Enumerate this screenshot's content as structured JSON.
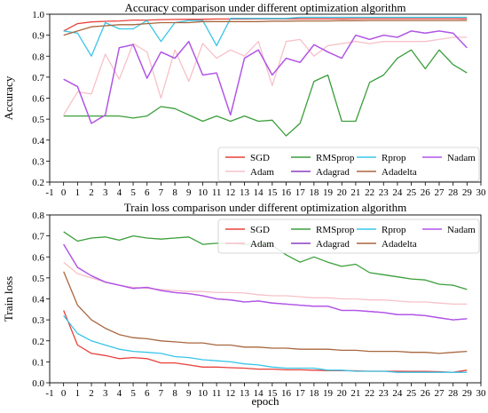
{
  "colors": {
    "SGD": "#e8403a",
    "Adam": "#f7c1c8",
    "RMSprop": "#3a9e3a",
    "Adagrad": "#8a3fc4",
    "Rprop": "#38c5e8",
    "Adadelta": "#a8673f",
    "Nadam": "#b455ea"
  },
  "chart_data": [
    {
      "type": "line",
      "title": "Accuracy comparison under different optimization algorithm",
      "xlabel": "",
      "ylabel": "Accuracy",
      "xlim": [
        -1,
        30
      ],
      "ylim": [
        0.2,
        1.0
      ],
      "xticks": [
        -1,
        0,
        1,
        2,
        3,
        4,
        5,
        6,
        7,
        8,
        9,
        10,
        11,
        12,
        13,
        14,
        15,
        16,
        17,
        18,
        19,
        20,
        21,
        22,
        23,
        24,
        25,
        26,
        27,
        28,
        29,
        30
      ],
      "yticks": [
        "0.2",
        "0.3",
        "0.4",
        "0.5",
        "0.6",
        "0.7",
        "0.8",
        "0.9",
        "1.0"
      ],
      "legend": "lower-right",
      "grid": false,
      "x": [
        0,
        1,
        2,
        3,
        4,
        5,
        6,
        7,
        8,
        9,
        10,
        11,
        12,
        13,
        14,
        15,
        16,
        17,
        18,
        19,
        20,
        21,
        22,
        23,
        24,
        25,
        26,
        27,
        28,
        29
      ],
      "series": [
        {
          "name": "SGD",
          "values": [
            0.92,
            0.955,
            0.963,
            0.966,
            0.968,
            0.972,
            0.972,
            0.974,
            0.975,
            0.976,
            0.976,
            0.977,
            0.977,
            0.977,
            0.978,
            0.978,
            0.978,
            0.978,
            0.978,
            0.978,
            0.978,
            0.979,
            0.979,
            0.979,
            0.979,
            0.979,
            0.979,
            0.979,
            0.979,
            0.978
          ]
        },
        {
          "name": "Adam",
          "values": [
            0.52,
            0.63,
            0.62,
            0.81,
            0.69,
            0.86,
            0.82,
            0.6,
            0.83,
            0.68,
            0.86,
            0.79,
            0.83,
            0.8,
            0.87,
            0.66,
            0.87,
            0.88,
            0.8,
            0.85,
            0.86,
            0.87,
            0.86,
            0.87,
            0.87,
            0.87,
            0.87,
            0.88,
            0.89,
            0.89
          ]
        },
        {
          "name": "RMSprop",
          "values": [
            0.515,
            0.515,
            0.515,
            0.515,
            0.515,
            0.505,
            0.515,
            0.56,
            0.55,
            0.52,
            0.49,
            0.515,
            0.49,
            0.515,
            0.49,
            0.495,
            0.42,
            0.48,
            0.68,
            0.71,
            0.49,
            0.49,
            0.675,
            0.71,
            0.79,
            0.83,
            0.74,
            0.83,
            0.76,
            0.72
          ]
        },
        {
          "name": "Adagrad",
          "values": [
            0.69,
            0.655,
            0.48,
            0.52,
            0.84,
            0.855,
            0.695,
            0.82,
            0.79,
            0.87,
            0.71,
            0.72,
            0.52,
            0.79,
            0.83,
            0.71,
            0.79,
            0.77,
            0.855,
            0.82,
            0.79,
            0.9,
            0.88,
            0.9,
            0.89,
            0.92,
            0.91,
            0.92,
            0.91,
            0.84
          ]
        },
        {
          "name": "Rprop",
          "values": [
            0.92,
            0.91,
            0.8,
            0.96,
            0.93,
            0.93,
            0.97,
            0.87,
            0.96,
            0.97,
            0.97,
            0.85,
            0.98,
            0.98,
            0.98,
            0.98,
            0.98,
            0.985,
            0.985,
            0.985,
            0.985,
            0.985,
            0.985,
            0.985,
            0.985,
            0.985,
            0.985,
            0.985,
            0.985,
            0.985
          ]
        },
        {
          "name": "Adadelta",
          "values": [
            0.9,
            0.92,
            0.94,
            0.945,
            0.95,
            0.95,
            0.955,
            0.96,
            0.96,
            0.96,
            0.965,
            0.965,
            0.965,
            0.965,
            0.965,
            0.967,
            0.967,
            0.968,
            0.968,
            0.968,
            0.969,
            0.969,
            0.97,
            0.97,
            0.97,
            0.97,
            0.97,
            0.97,
            0.97,
            0.97
          ]
        },
        {
          "name": "Nadam",
          "values": [
            0.69,
            0.655,
            0.48,
            0.52,
            0.84,
            0.855,
            0.695,
            0.82,
            0.79,
            0.87,
            0.71,
            0.72,
            0.52,
            0.79,
            0.83,
            0.71,
            0.79,
            0.77,
            0.855,
            0.82,
            0.79,
            0.9,
            0.88,
            0.9,
            0.89,
            0.92,
            0.91,
            0.92,
            0.91,
            0.84
          ]
        }
      ]
    },
    {
      "type": "line",
      "title": "Train loss comparison under different optimization algorithm",
      "xlabel": "epoch",
      "ylabel": "Train loss",
      "xlim": [
        -1,
        30
      ],
      "ylim": [
        0.0,
        0.8
      ],
      "xticks": [
        -1,
        0,
        1,
        2,
        3,
        4,
        5,
        6,
        7,
        8,
        9,
        10,
        11,
        12,
        13,
        14,
        15,
        16,
        17,
        18,
        19,
        20,
        21,
        22,
        23,
        24,
        25,
        26,
        27,
        28,
        29,
        30
      ],
      "yticks": [
        "0.0",
        "0.1",
        "0.2",
        "0.3",
        "0.4",
        "0.5",
        "0.6",
        "0.7",
        "0.8"
      ],
      "legend": "top-right",
      "grid": false,
      "x": [
        0,
        1,
        2,
        3,
        4,
        5,
        6,
        7,
        8,
        9,
        10,
        11,
        12,
        13,
        14,
        15,
        16,
        17,
        18,
        19,
        20,
        21,
        22,
        23,
        24,
        25,
        26,
        27,
        28,
        29
      ],
      "series": [
        {
          "name": "SGD",
          "values": [
            0.345,
            0.18,
            0.14,
            0.13,
            0.115,
            0.12,
            0.115,
            0.095,
            0.095,
            0.085,
            0.075,
            0.075,
            0.072,
            0.07,
            0.065,
            0.065,
            0.062,
            0.062,
            0.06,
            0.058,
            0.058,
            0.057,
            0.055,
            0.055,
            0.055,
            0.054,
            0.054,
            0.053,
            0.05,
            0.06
          ]
        },
        {
          "name": "Adam",
          "values": [
            0.575,
            0.52,
            0.5,
            0.48,
            0.465,
            0.455,
            0.45,
            0.445,
            0.44,
            0.435,
            0.435,
            0.43,
            0.43,
            0.428,
            0.42,
            0.415,
            0.415,
            0.41,
            0.405,
            0.405,
            0.4,
            0.4,
            0.395,
            0.395,
            0.39,
            0.385,
            0.385,
            0.38,
            0.375,
            0.375
          ]
        },
        {
          "name": "RMSprop",
          "values": [
            0.72,
            0.675,
            0.69,
            0.695,
            0.68,
            0.7,
            0.69,
            0.685,
            0.69,
            0.695,
            0.66,
            0.665,
            0.665,
            0.66,
            0.66,
            0.655,
            0.61,
            0.575,
            0.6,
            0.575,
            0.555,
            0.565,
            0.525,
            0.515,
            0.505,
            0.495,
            0.49,
            0.47,
            0.465,
            0.445
          ]
        },
        {
          "name": "Adagrad",
          "values": [
            0.66,
            0.55,
            0.51,
            0.48,
            0.465,
            0.45,
            0.455,
            0.44,
            0.43,
            0.425,
            0.415,
            0.4,
            0.395,
            0.385,
            0.39,
            0.38,
            0.375,
            0.37,
            0.365,
            0.365,
            0.345,
            0.345,
            0.34,
            0.335,
            0.325,
            0.325,
            0.32,
            0.31,
            0.3,
            0.305
          ]
        },
        {
          "name": "Rprop",
          "values": [
            0.32,
            0.235,
            0.2,
            0.18,
            0.16,
            0.15,
            0.145,
            0.14,
            0.125,
            0.12,
            0.11,
            0.105,
            0.1,
            0.09,
            0.085,
            0.075,
            0.07,
            0.07,
            0.07,
            0.06,
            0.06,
            0.055,
            0.055,
            0.055,
            0.05,
            0.05,
            0.05,
            0.05,
            0.05,
            0.05
          ]
        },
        {
          "name": "Adadelta",
          "values": [
            0.53,
            0.37,
            0.3,
            0.26,
            0.23,
            0.215,
            0.21,
            0.2,
            0.195,
            0.19,
            0.19,
            0.18,
            0.18,
            0.17,
            0.17,
            0.165,
            0.165,
            0.16,
            0.16,
            0.16,
            0.155,
            0.155,
            0.15,
            0.15,
            0.15,
            0.145,
            0.145,
            0.14,
            0.145,
            0.15
          ]
        },
        {
          "name": "Nadam",
          "values": [
            0.66,
            0.55,
            0.51,
            0.48,
            0.465,
            0.45,
            0.455,
            0.44,
            0.43,
            0.425,
            0.415,
            0.4,
            0.395,
            0.385,
            0.39,
            0.38,
            0.375,
            0.37,
            0.365,
            0.365,
            0.345,
            0.345,
            0.34,
            0.335,
            0.325,
            0.325,
            0.32,
            0.31,
            0.3,
            0.305
          ]
        }
      ]
    }
  ]
}
